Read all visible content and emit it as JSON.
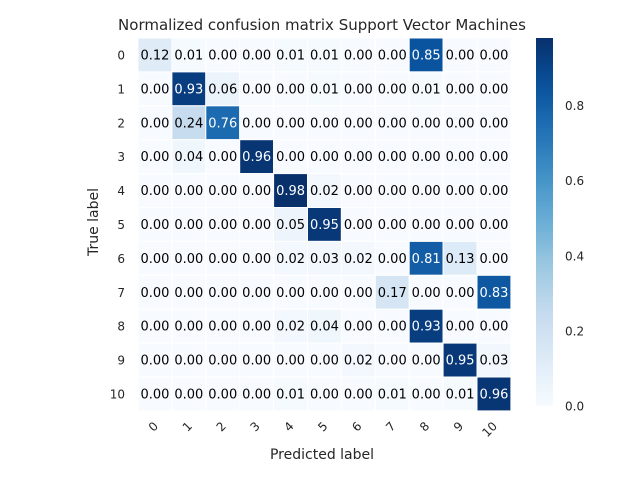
{
  "chart_data": {
    "type": "heatmap",
    "title": "Normalized confusion matrix Support Vector Machines",
    "xlabel": "Predicted label",
    "ylabel": "True label",
    "row_labels": [
      "0",
      "1",
      "2",
      "3",
      "4",
      "5",
      "6",
      "7",
      "8",
      "9",
      "10"
    ],
    "col_labels": [
      "0",
      "1",
      "2",
      "3",
      "4",
      "5",
      "6",
      "7",
      "8",
      "9",
      "10"
    ],
    "values": [
      [
        0.12,
        0.01,
        0.0,
        0.0,
        0.01,
        0.01,
        0.0,
        0.0,
        0.85,
        0.0,
        0.0
      ],
      [
        0.0,
        0.93,
        0.06,
        0.0,
        0.0,
        0.01,
        0.0,
        0.0,
        0.01,
        0.0,
        0.0
      ],
      [
        0.0,
        0.24,
        0.76,
        0.0,
        0.0,
        0.0,
        0.0,
        0.0,
        0.0,
        0.0,
        0.0
      ],
      [
        0.0,
        0.04,
        0.0,
        0.96,
        0.0,
        0.0,
        0.0,
        0.0,
        0.0,
        0.0,
        0.0
      ],
      [
        0.0,
        0.0,
        0.0,
        0.0,
        0.98,
        0.02,
        0.0,
        0.0,
        0.0,
        0.0,
        0.0
      ],
      [
        0.0,
        0.0,
        0.0,
        0.0,
        0.05,
        0.95,
        0.0,
        0.0,
        0.0,
        0.0,
        0.0
      ],
      [
        0.0,
        0.0,
        0.0,
        0.0,
        0.02,
        0.03,
        0.02,
        0.0,
        0.81,
        0.13,
        0.0
      ],
      [
        0.0,
        0.0,
        0.0,
        0.0,
        0.0,
        0.0,
        0.0,
        0.17,
        0.0,
        0.0,
        0.83
      ],
      [
        0.0,
        0.0,
        0.0,
        0.0,
        0.02,
        0.04,
        0.0,
        0.0,
        0.93,
        0.0,
        0.0
      ],
      [
        0.0,
        0.0,
        0.0,
        0.0,
        0.0,
        0.0,
        0.02,
        0.0,
        0.0,
        0.95,
        0.03
      ],
      [
        0.0,
        0.0,
        0.0,
        0.0,
        0.01,
        0.0,
        0.0,
        0.01,
        0.0,
        0.01,
        0.96
      ]
    ],
    "colorbar": {
      "colormap": "Blues",
      "range": [
        0.0,
        0.98
      ],
      "ticks": [
        "0.0",
        "0.2",
        "0.4",
        "0.6",
        "0.8"
      ]
    },
    "text_threshold": 0.49,
    "grid": true
  }
}
